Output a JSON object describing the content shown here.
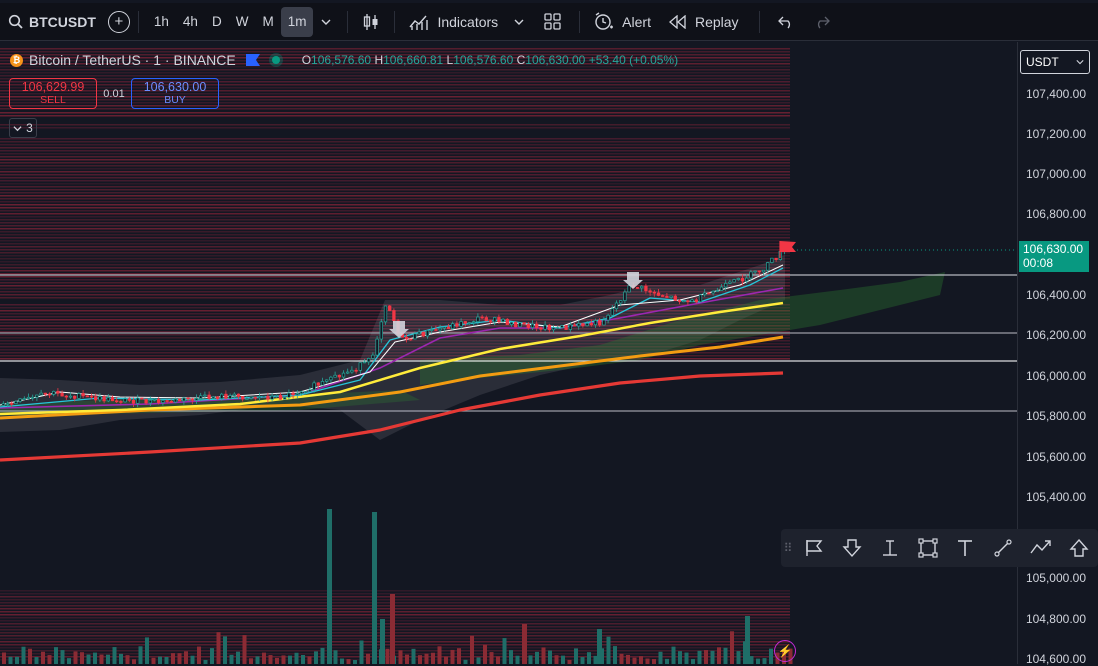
{
  "toolbar": {
    "symbol": "BTCUSDT",
    "timeframes": [
      "1h",
      "4h",
      "D",
      "W",
      "M",
      "1m"
    ],
    "active_timeframe": "1m",
    "indicators_label": "Indicators",
    "alert_label": "Alert",
    "replay_label": "Replay"
  },
  "legend": {
    "title": "Bitcoin / TetherUS · 1 · BINANCE",
    "open_key": "O",
    "open": "106,576.60",
    "high_key": "H",
    "high": "106,660.81",
    "low_key": "L",
    "low": "106,576.60",
    "close_key": "C",
    "close": "106,630.00",
    "change": "+53.40 (+0.05%)"
  },
  "trade": {
    "sell_price": "106,629.99",
    "sell_label": "SELL",
    "spread": "0.01",
    "buy_price": "106,630.00",
    "buy_label": "BUY"
  },
  "indicator_count": "3",
  "price_axis": {
    "currency": "USDT",
    "ticks": [
      "107,400.00",
      "107,200.00",
      "107,000.00",
      "106,800.00",
      "106,400.00",
      "106,200.00",
      "106,000.00",
      "105,800.00",
      "105,600.00",
      "105,400.00",
      "105,000.00",
      "104,800.00",
      "104,600.00"
    ],
    "current_price": "106,630.00",
    "countdown": "00:08"
  },
  "colors": {
    "up": "#26a69a",
    "down": "#f23645",
    "ma_red": "#e53935",
    "ma_orange": "#f39c12",
    "ma_yellow": "#ffeb3b",
    "ma_purple": "#9c27b0",
    "ma_cyan": "#26c6da",
    "background": "#131722"
  },
  "icons": {
    "search": "search-icon",
    "add": "plus-circle-icon",
    "candles": "candlestick-icon",
    "indicators": "indicators-icon",
    "layout": "layout-grid-icon",
    "alert": "alarm-clock-icon",
    "replay": "rewind-icon",
    "undo": "undo-icon",
    "redo": "redo-icon",
    "draw_tools": [
      "flag-icon",
      "arrow-down-icon",
      "text-cursor-icon",
      "rectangle-icon",
      "text-icon",
      "trend-line-icon",
      "path-icon",
      "arrow-up-icon"
    ]
  }
}
